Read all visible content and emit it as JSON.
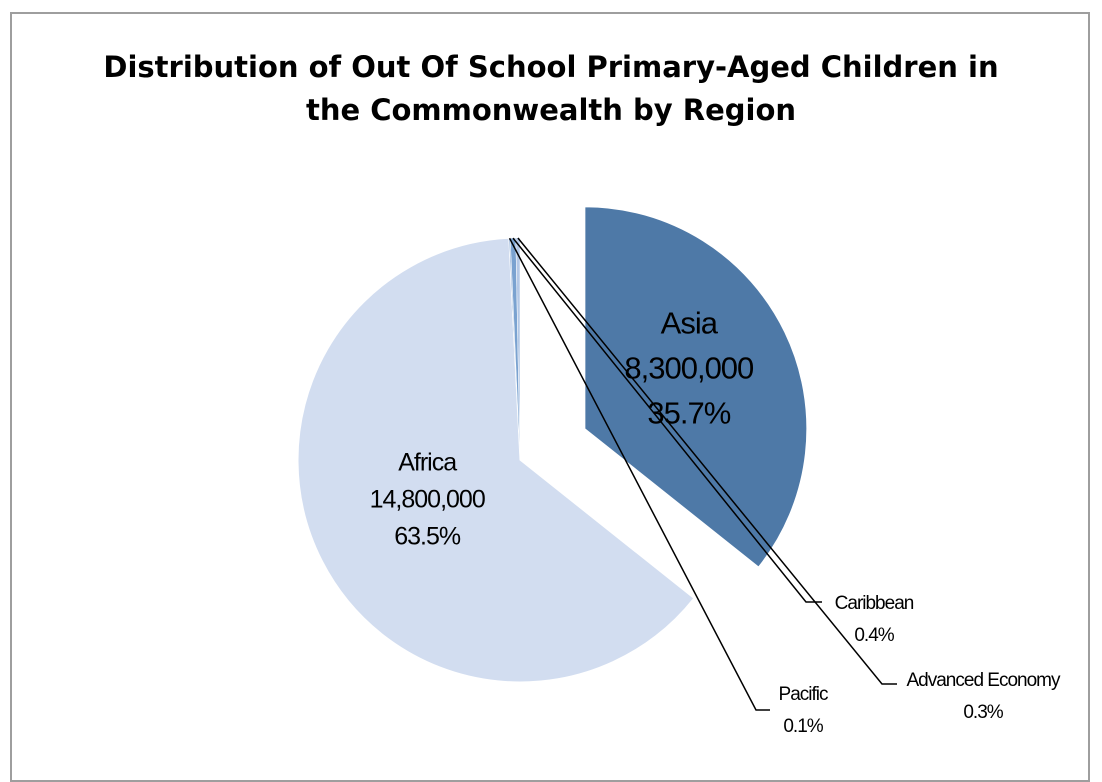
{
  "chart_data": {
    "type": "pie",
    "title": "Distribution of Out Of School Primary-Aged Children in\nthe Commonwealth by Region",
    "slices": [
      {
        "name": "Asia",
        "value": 8300000,
        "value_label": "8,300,000",
        "percent": 35.7,
        "percent_label": "35.7%",
        "color": "#4e79a7",
        "exploded": true,
        "label_style": "inside"
      },
      {
        "name": "Africa",
        "value": 14800000,
        "value_label": "14,800,000",
        "percent": 63.5,
        "percent_label": "63.5%",
        "color": "#d2ddf0",
        "exploded": false,
        "label_style": "inside"
      },
      {
        "name": "Pacific",
        "percent": 0.1,
        "percent_label": "0.1%",
        "color": "#9bb7dc",
        "exploded": false,
        "label_style": "leader"
      },
      {
        "name": "Caribbean",
        "percent": 0.4,
        "percent_label": "0.4%",
        "color": "#7aa2d0",
        "exploded": false,
        "label_style": "leader"
      },
      {
        "name": "Advanced Economy",
        "percent": 0.3,
        "percent_label": "0.3%",
        "color": "#b4c8e6",
        "exploded": false,
        "label_style": "leader"
      }
    ],
    "legend": false
  }
}
